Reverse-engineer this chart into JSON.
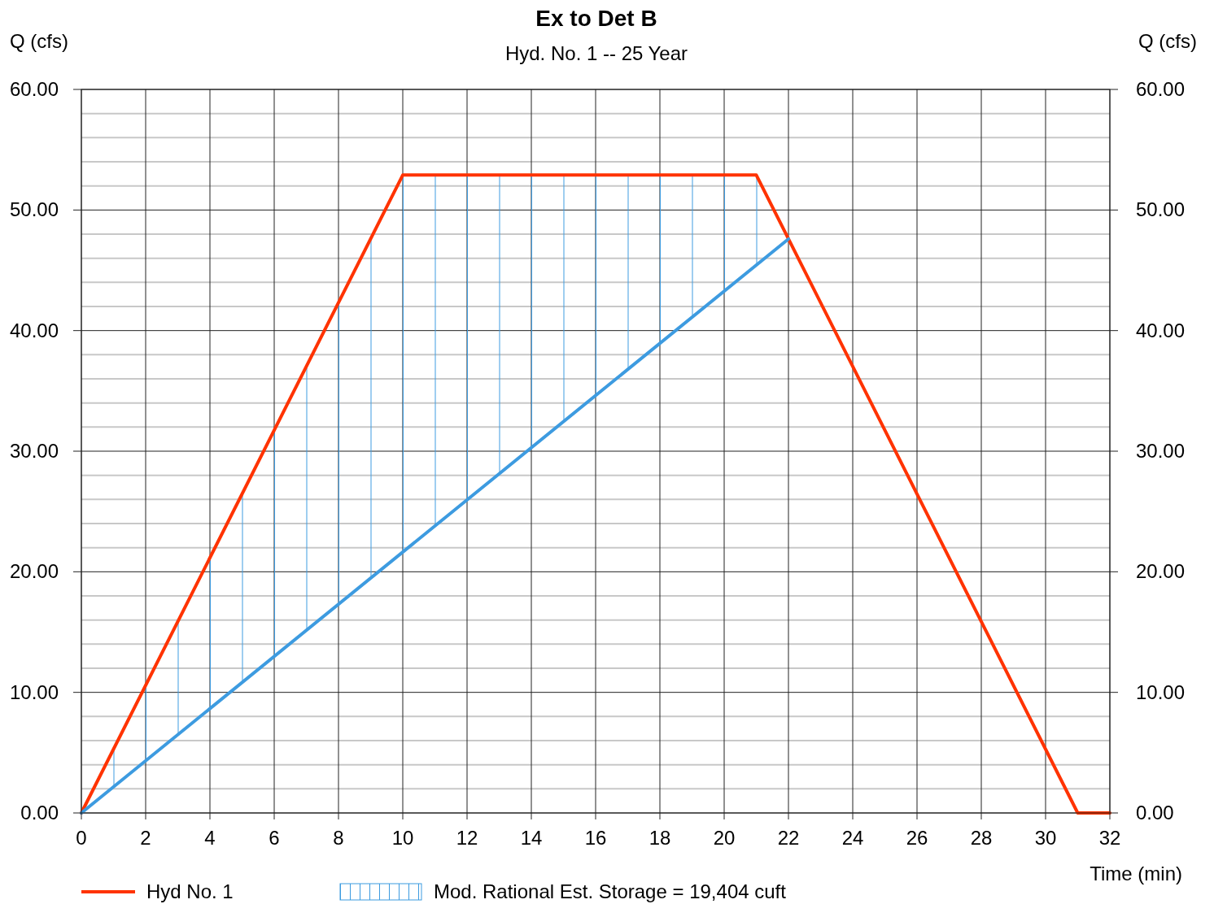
{
  "chart_data": {
    "type": "line",
    "title": "Ex to Det B",
    "subtitle": "Hyd. No. 1 -- 25 Year",
    "xlabel": "Time (min)",
    "ylabel": "Q (cfs)",
    "y2label": "Q (cfs)",
    "xlim": [
      0,
      32
    ],
    "xticks": [
      0,
      2,
      4,
      6,
      8,
      10,
      12,
      14,
      16,
      18,
      20,
      22,
      24,
      26,
      28,
      30,
      32
    ],
    "ylim": [
      0,
      60
    ],
    "yticks": [
      {
        "value": 0,
        "label": "0.00"
      },
      {
        "value": 10,
        "label": "10.00"
      },
      {
        "value": 20,
        "label": "20.00"
      },
      {
        "value": 30,
        "label": "30.00"
      },
      {
        "value": 40,
        "label": "40.00"
      },
      {
        "value": 50,
        "label": "50.00"
      },
      {
        "value": 60,
        "label": "60.00"
      }
    ],
    "y2lim": [
      0,
      60
    ],
    "y2ticks": [
      {
        "value": 0,
        "label": "0.00"
      },
      {
        "value": 10,
        "label": "10.00"
      },
      {
        "value": 20,
        "label": "20.00"
      },
      {
        "value": 30,
        "label": "30.00"
      },
      {
        "value": 40,
        "label": "40.00"
      },
      {
        "value": 50,
        "label": "50.00"
      },
      {
        "value": 60,
        "label": "60.00"
      }
    ],
    "grid": true,
    "legend": "bottom",
    "annotations": [
      "Mod. Rational Est. Storage = 19,404 cuft"
    ],
    "series": [
      {
        "name": "Hyd No. 1",
        "color": "#ff3300",
        "x": [
          0,
          10,
          21,
          31,
          32
        ],
        "values": [
          0,
          52.9,
          52.9,
          0,
          0
        ]
      },
      {
        "type": "line",
        "color": "#3d9be0",
        "x": [
          0,
          22
        ],
        "values": [
          0,
          47.6
        ]
      }
    ]
  }
}
